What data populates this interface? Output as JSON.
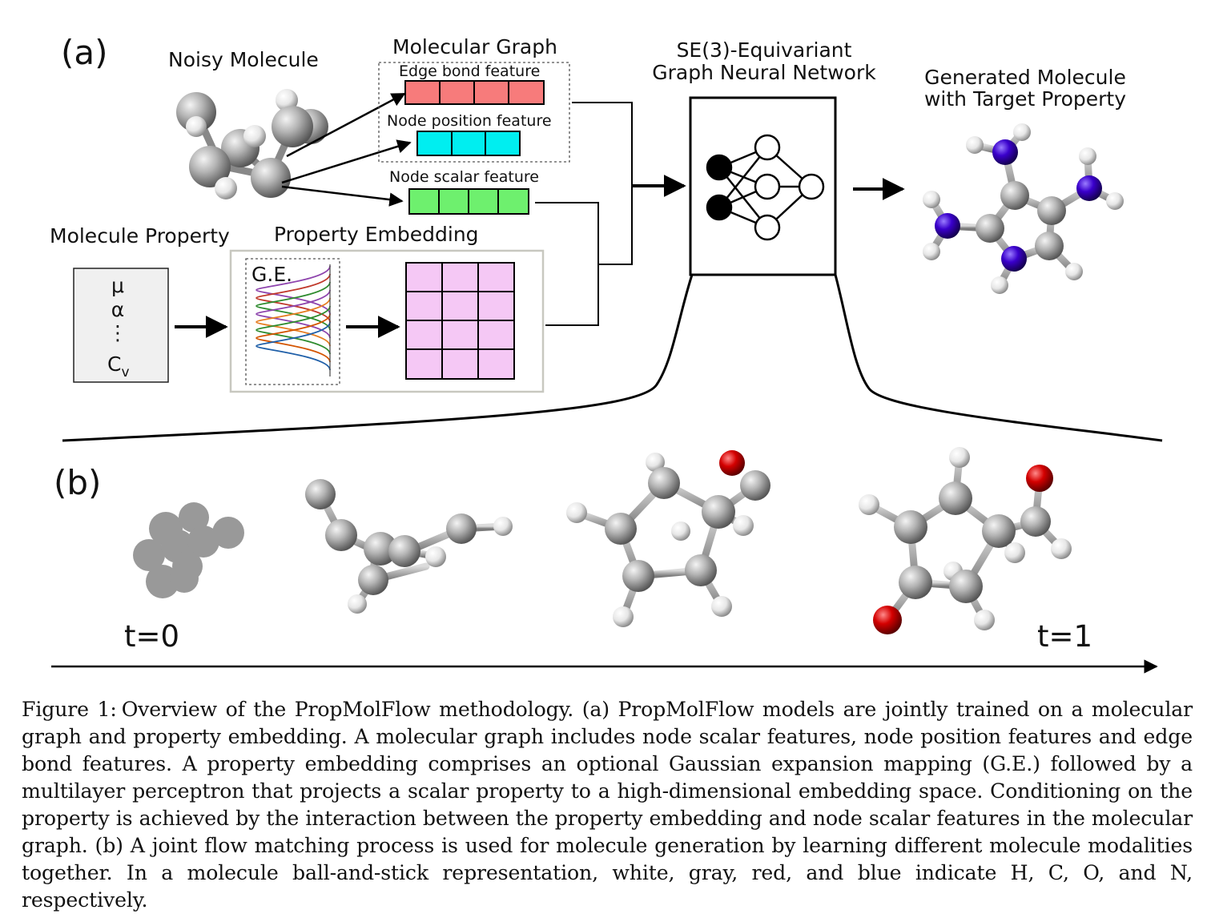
{
  "panel_a": {
    "label": "(a)",
    "noisy_molecule_title": "Noisy Molecule",
    "molecular_graph_title": "Molecular Graph",
    "edge_bond_feature": "Edge bond feature",
    "node_position_feature": "Node position feature",
    "node_scalar_feature": "Node scalar feature",
    "molecule_property_title": "Molecule Property",
    "property_items": [
      "μ",
      "α",
      "⋮",
      "C",
      "v"
    ],
    "property_embedding_title": "Property Embedding",
    "gaussian_expansion_label": "G.E.",
    "gnn_title_line1": "SE(3)-Equivariant",
    "gnn_title_line2": "Graph Neural Network",
    "generated_title_line1": "Generated Molecule",
    "generated_title_line2": "with Target Property"
  },
  "panel_b": {
    "label": "(b)",
    "t_start": "t=0",
    "t_end": "t=1"
  },
  "caption": {
    "label": "Figure 1:",
    "text": "Overview of the PropMolFlow methodology. (a) PropMolFlow models are jointly trained on a molecular graph and property embedding. A molecular graph includes node scalar features, node position features and edge bond features. A property embedding comprises an optional Gaussian expansion mapping (G.E.) followed by a multilayer perceptron that projects a scalar property to a high-dimensional embedding space. Conditioning on the property is achieved by the interaction between the property embedding and node scalar features in the molecular graph. (b) A joint flow matching process is used for molecule generation by learning different molecule modalities together. In a molecule ball-and-stick representation, white, gray, red, and blue indicate H, C, O, and N, respectively."
  },
  "colors": {
    "edge_bond": "#f77b7b",
    "node_position": "#00eef0",
    "node_scalar": "#6ef06e",
    "embedding": "#f5c8f5",
    "hydrogen": "#f2f2f2",
    "carbon": "#a8a8a8",
    "oxygen": "#d40000",
    "nitrogen": "#3a00cc"
  }
}
